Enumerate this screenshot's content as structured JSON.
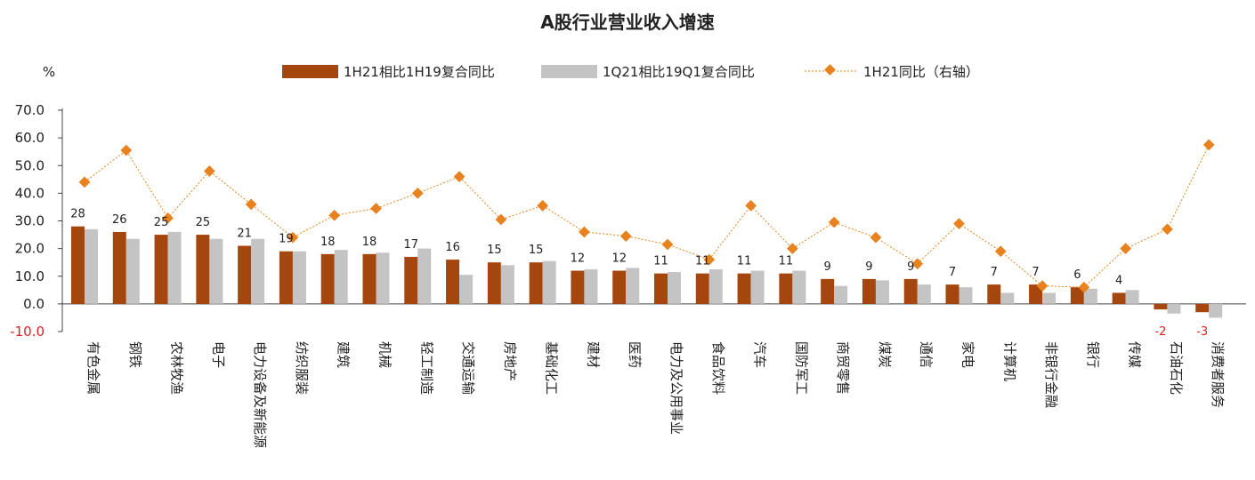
{
  "chart_data": {
    "type": "bar",
    "title": "A股行业营业收入增速",
    "ylabel": "%",
    "ylim": [
      -10,
      70
    ],
    "yticks": [
      "70.0",
      "60.0",
      "50.0",
      "40.0",
      "30.0",
      "20.0",
      "10.0",
      "0.0",
      "-10.0"
    ],
    "y2lim": [
      0,
      70
    ],
    "grid": false,
    "legend_position": "top",
    "categories": [
      "有色金属",
      "钢铁",
      "农林牧渔",
      "电子",
      "电力设备及新能源",
      "纺织服装",
      "建筑",
      "机械",
      "轻工制造",
      "交通运输",
      "房地产",
      "基础化工",
      "建材",
      "医药",
      "电力及公用事业",
      "食品饮料",
      "汽车",
      "国防军工",
      "商贸零售",
      "煤炭",
      "通信",
      "家电",
      "计算机",
      "非银行金融",
      "银行",
      "传媒",
      "石油石化",
      "消费者服务"
    ],
    "series": [
      {
        "name": "1H21相比1H19复合同比",
        "type": "bar",
        "color": "#a5460e",
        "values": [
          28,
          26,
          25,
          25,
          21,
          19,
          18,
          18,
          17,
          16,
          15,
          15,
          12,
          12,
          11,
          11,
          11,
          11,
          9,
          9,
          9,
          7,
          7,
          7,
          6,
          4,
          -2,
          -3
        ],
        "labels": [
          "28",
          "26",
          "25",
          "25",
          "21",
          "19",
          "18",
          "18",
          "17",
          "16",
          "15",
          "15",
          "12",
          "12",
          "11",
          "11",
          "11",
          "11",
          "9",
          "9",
          "9",
          "7",
          "7",
          "7",
          "6",
          "4",
          "-2",
          "-3"
        ]
      },
      {
        "name": "1Q21相比19Q1复合同比",
        "type": "bar",
        "color": "#c4c4c4",
        "values": [
          27,
          23.5,
          26,
          23.5,
          23.5,
          19,
          19.5,
          18.5,
          20,
          10.5,
          14,
          15.5,
          12.5,
          13,
          11.5,
          12.5,
          12,
          12,
          6.5,
          8.5,
          7,
          6,
          4,
          4,
          5.5,
          5,
          -3.5,
          -5
        ]
      },
      {
        "name": "1H21同比（右轴）",
        "type": "line",
        "axis": "right",
        "color": "#e8821e",
        "values": [
          44,
          55.5,
          31,
          48,
          36,
          24,
          32,
          34.5,
          40,
          46,
          30.5,
          35.5,
          26,
          24.5,
          21.5,
          16,
          35.5,
          20,
          29.5,
          24,
          14.5,
          29,
          19,
          6.5,
          6,
          20,
          27,
          57.5
        ]
      }
    ]
  }
}
